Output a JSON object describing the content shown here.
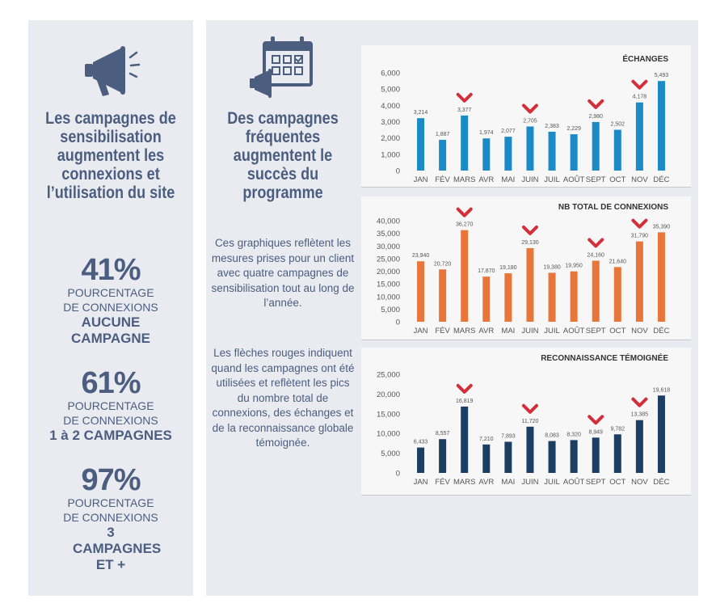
{
  "left": {
    "icon": "megaphone-icon",
    "headline": "Les campagnes de sensibilisation augmentent les connexions et l’utilisation du site",
    "stats": [
      {
        "pct": "41%",
        "desc": "POURCENTAGE DE CONNEXIONS",
        "strong": "AUCUNE CAMPAGNE"
      },
      {
        "pct": "61%",
        "desc": "POURCENTAGE DE CONNEXIONS",
        "strong": "1 à 2 CAMPAGNES"
      },
      {
        "pct": "97%",
        "desc": "POURCENTAGE DE CONNEXIONS",
        "strong": "3 CAMPAGNES ET +"
      }
    ]
  },
  "right": {
    "icon": "calendar-megaphone-icon",
    "headline": "Des campagnes fréquentes augmentent le succès du programme",
    "paragraph1": "Ces graphiques reflètent les mesures prises pour un client avec quatre campagnes de sensibilisation tout au long de l’année.",
    "paragraph2": "Les flèches rouges indiquent quand les campagnes ont été utilisées et reflètent les pics du nombre total de connexions, des échanges et de la reconnaissance globale témoignée."
  },
  "colors": {
    "panel": "#e9ebf1",
    "text": "#4b5e80",
    "marker": "#d32f3a",
    "blue": "#1b8ac6",
    "orange": "#e8763a",
    "navy": "#1d3e63"
  },
  "chart_data": [
    {
      "type": "bar",
      "title": "ÉCHANGES",
      "categories": [
        "JAN",
        "FÉV",
        "MARS",
        "AVR",
        "MAI",
        "JUIN",
        "JUIL",
        "AOÛT",
        "SEPT",
        "OCT",
        "NOV",
        "DÉC"
      ],
      "values": [
        3214,
        1887,
        3377,
        1974,
        2077,
        2705,
        2383,
        2229,
        2980,
        2502,
        4178,
        5493
      ],
      "value_labels": [
        "3,214",
        "1,887",
        "3,377",
        "1,974",
        "2,077",
        "2,705",
        "2,383",
        "2,229",
        "2,980",
        "2,502",
        "4,178",
        "5,493"
      ],
      "ylim": [
        0,
        6000
      ],
      "yticks": [
        0,
        1000,
        2000,
        3000,
        4000,
        5000,
        6000
      ],
      "ytick_labels": [
        "0",
        "1,000",
        "2,000",
        "3,000",
        "4,000",
        "5,000",
        "6,000"
      ],
      "campaign_months": [
        2,
        5,
        8,
        10
      ],
      "color": "#1b8ac6",
      "grid": false
    },
    {
      "type": "bar",
      "title": "NB TOTAL DE CONNEXIONS",
      "categories": [
        "JAN",
        "FÉV",
        "MARS",
        "AVR",
        "MAI",
        "JUIN",
        "JUIL",
        "AOÛT",
        "SEPT",
        "OCT",
        "NOV",
        "DÉC"
      ],
      "values": [
        23940,
        20720,
        36270,
        17870,
        19180,
        29130,
        19380,
        19950,
        24160,
        21640,
        31790,
        35390
      ],
      "value_labels": [
        "23,940",
        "20,720",
        "36,270",
        "17,870",
        "19,180",
        "29,130",
        "19,380",
        "19,950",
        "24,160",
        "21,640",
        "31,790",
        "35,390"
      ],
      "ylim": [
        0,
        40000
      ],
      "yticks": [
        0,
        5000,
        10000,
        15000,
        20000,
        25000,
        30000,
        35000,
        40000
      ],
      "ytick_labels": [
        "0",
        "5,000",
        "10,000",
        "15,000",
        "20,000",
        "25,000",
        "30,000",
        "35,000",
        "40,000"
      ],
      "campaign_months": [
        2,
        5,
        8,
        10
      ],
      "color": "#e8763a",
      "grid": false
    },
    {
      "type": "bar",
      "title": "RECONNAISSANCE TÉMOIGNÉE",
      "categories": [
        "JAN",
        "FÉV",
        "MARS",
        "AVR",
        "MAI",
        "JUIN",
        "JUIL",
        "AOÛT",
        "SEPT",
        "OCT",
        "NOV",
        "DÉC"
      ],
      "values": [
        6433,
        8557,
        16819,
        7210,
        7893,
        11720,
        8083,
        8320,
        8949,
        9782,
        13385,
        19618
      ],
      "value_labels": [
        "6,433",
        "8,557",
        "16,819",
        "7,210",
        "7,893",
        "11,720",
        "8,083",
        "8,320",
        "8,949",
        "9,782",
        "13,385",
        "19,618"
      ],
      "ylim": [
        0,
        25000
      ],
      "yticks": [
        0,
        5000,
        10000,
        15000,
        20000,
        25000
      ],
      "ytick_labels": [
        "0",
        "5,000",
        "10,000",
        "15,000",
        "20,000",
        "25,000"
      ],
      "campaign_months": [
        2,
        5,
        8,
        10
      ],
      "color": "#1d3e63",
      "grid": false
    }
  ]
}
